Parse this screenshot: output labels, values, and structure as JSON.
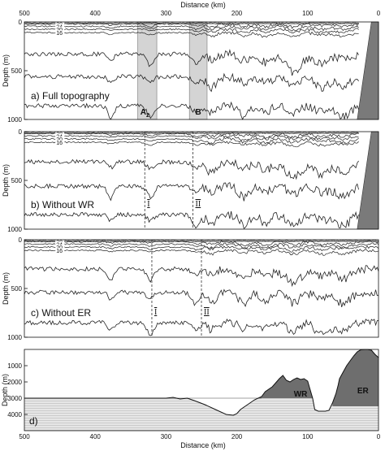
{
  "figure": {
    "top_axis_title": "Distance (km)",
    "bottom_axis_title": "Distance (km)",
    "x_tick_labels": [
      "500",
      "400",
      "300",
      "200",
      "100",
      "0"
    ]
  },
  "chart_data": [
    {
      "type": "line",
      "panel_label": "a)  Full topography",
      "ylabel": "Depth (m)",
      "x_range_km": [
        500,
        0
      ],
      "y_range_m": [
        0,
        1000
      ],
      "y_ticks": [
        "0",
        "500",
        "1000"
      ],
      "isotherm_labels": [
        "28",
        "24",
        "20",
        "16"
      ],
      "isotherm_depths_m": [
        20,
        45,
        75,
        110
      ],
      "deep_contour_depths_m": [
        330,
        560,
        860
      ],
      "shaded_bands": [
        {
          "label": "A",
          "subscript": "2",
          "x_from_km": 340,
          "x_to_km": 313
        },
        {
          "label": "B",
          "x_from_km": 267,
          "x_to_km": 242
        }
      ],
      "coast_present": true
    },
    {
      "type": "line",
      "panel_label": "b)  Without WR",
      "ylabel": "Depth (m)",
      "x_range_km": [
        500,
        0
      ],
      "y_range_m": [
        0,
        1000
      ],
      "y_ticks": [
        "0",
        "500",
        "1000"
      ],
      "isotherm_labels": [
        "28",
        "24",
        "20",
        "16"
      ],
      "isotherm_depths_m": [
        20,
        45,
        75,
        110
      ],
      "deep_contour_depths_m": [
        310,
        560,
        850
      ],
      "dashed_markers": [
        {
          "label": "I",
          "x_km": 330
        },
        {
          "label": "II",
          "x_km": 262
        }
      ],
      "coast_present": true
    },
    {
      "type": "line",
      "panel_label": "c)  Without ER",
      "ylabel": "Depth (m)",
      "x_range_km": [
        500,
        0
      ],
      "y_range_m": [
        0,
        1000
      ],
      "y_ticks": [
        "0",
        "500",
        "1000"
      ],
      "isotherm_labels": [
        "28",
        "24",
        "20",
        "16"
      ],
      "isotherm_depths_m": [
        20,
        45,
        75,
        110
      ],
      "deep_contour_depths_m": [
        300,
        540,
        850
      ],
      "dashed_markers": [
        {
          "label": "I",
          "x_km": 320
        },
        {
          "label": "II",
          "x_km": 250
        }
      ],
      "coast_present": false
    },
    {
      "type": "area",
      "panel_label": "d)",
      "ylabel": "Depth (m)",
      "x_range_km": [
        500,
        0
      ],
      "y_range_m": [
        0,
        5000
      ],
      "y_ticks": [
        "1000",
        "2000",
        "3000",
        "4000"
      ],
      "regions": [
        {
          "label": "WR",
          "x_km": 110,
          "y_m": 2700
        },
        {
          "label": "ER",
          "x_km": 22,
          "y_m": 2500
        }
      ],
      "bottom_profile": {
        "x": [
          500,
          450,
          400,
          350,
          300,
          290,
          280,
          270,
          260,
          245,
          230,
          215,
          205,
          200,
          195,
          185,
          175,
          165,
          160,
          150,
          145,
          140,
          135,
          130,
          125,
          120,
          115,
          110,
          105,
          100,
          97,
          93,
          90,
          85,
          80,
          75,
          70,
          65,
          60,
          57,
          55,
          50,
          45,
          40,
          35,
          30,
          25,
          20,
          15,
          10,
          5,
          0
        ],
        "depth_m": [
          3000,
          3000,
          3000,
          3000,
          3000,
          2950,
          3050,
          3000,
          3150,
          3400,
          3700,
          4000,
          4050,
          3950,
          3700,
          3400,
          3100,
          2900,
          2600,
          2300,
          2050,
          1800,
          1600,
          1900,
          2000,
          1850,
          1750,
          1850,
          1800,
          1950,
          2400,
          3000,
          3700,
          3800,
          3800,
          3800,
          3750,
          3300,
          2700,
          2200,
          1800,
          1400,
          1000,
          700,
          400,
          150,
          20,
          0,
          0,
          50,
          300,
          500
        ]
      },
      "wr_top_m": 3000,
      "er_top_m": 3500
    }
  ]
}
